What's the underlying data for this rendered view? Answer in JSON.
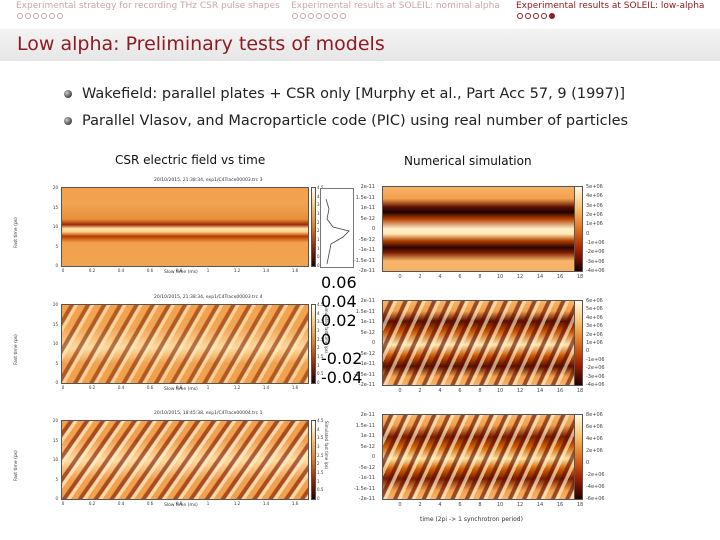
{
  "nav": {
    "sections": [
      {
        "label": "Experimental strategy for recording THz CSR pulse shapes",
        "dots": 6,
        "filled": 0,
        "active": false
      },
      {
        "label": "Experimental results at SOLEIL: nominal alpha",
        "dots": 7,
        "filled": 0,
        "active": false
      },
      {
        "label": "Experimental results at SOLEIL: low-alpha",
        "dots": 5,
        "filled": 1,
        "active": true
      }
    ]
  },
  "slide": {
    "title": "Low alpha: Preliminary tests of models",
    "bullets": [
      "Wakefield: parallel plates + CSR only [Murphy et al., Part Acc 57, 9 (1997)]",
      "Parallel Vlasov, and Macroparticle code (PIC) using real number of particles"
    ]
  },
  "left_column": {
    "heading": "CSR electric field vs time",
    "x_label": "Slow time (ms)",
    "y_label": "Fast time (ps)",
    "cbar_label": "Simulated fast time (ps)",
    "x_ticks": [
      "0",
      "0.2",
      "0.4",
      "0.6",
      "0.8",
      "1",
      "1.2",
      "1.4",
      "1.6"
    ],
    "y_ticks": [
      "20",
      "15",
      "10",
      "5",
      "0"
    ],
    "cbar_ticks": [
      "4.5",
      "4",
      "3.5",
      "3",
      "2.5",
      "2",
      "1.5",
      "1",
      "0.5",
      "0"
    ],
    "plots": [
      {
        "caption": "20/10/2015, 21:38:34, exp1/C4Trace00003.trc 3"
      },
      {
        "caption": "20/10/2015, 21:38:34, exp1/C4Trace00003.trc 4"
      },
      {
        "caption": "20/10/2015, 18:45:38, exp1/C4Trace00004.trc 1"
      }
    ],
    "inset": {
      "ticks": [
        "0.06",
        "0.04",
        "0.02",
        "0",
        "-0.02",
        "-0.04"
      ],
      "label": "Electric field (V)"
    }
  },
  "right_column": {
    "heading": "Numerical simulation",
    "x_label": "time (2pi -> 1 synchrotron period)",
    "x_ticks": [
      "0",
      "2",
      "4",
      "6",
      "8",
      "10",
      "12",
      "14",
      "16",
      "18"
    ],
    "plots": [
      {
        "y_ticks": [
          "2e-11",
          "1.5e-11",
          "1e-11",
          "5e-12",
          "0",
          "-5e-12",
          "-1e-11",
          "-1.5e-11",
          "-2e-11"
        ],
        "cbar_ticks": [
          "5e+06",
          "4e+06",
          "3e+06",
          "2e+06",
          "1e+06",
          "0",
          "-1e+06",
          "-2e+06",
          "-3e+06",
          "-4e+06"
        ]
      },
      {
        "y_ticks": [
          "2e-11",
          "1.5e-11",
          "1e-11",
          "5e-12",
          "0",
          "-5e-12",
          "-1e-11",
          "-1.5e-11",
          "-2e-11"
        ],
        "cbar_ticks": [
          "6e+06",
          "5e+06",
          "4e+06",
          "3e+06",
          "2e+06",
          "1e+06",
          "0",
          "-1e+06",
          "-2e+06",
          "-3e+06",
          "-4e+06"
        ]
      },
      {
        "y_ticks": [
          "2e-11",
          "1.5e-11",
          "1e-11",
          "5e-12",
          "0",
          "-5e-12",
          "-1e-11",
          "-1.5e-11",
          "-2e-11"
        ],
        "cbar_ticks": [
          "8e+06",
          "6e+06",
          "4e+06",
          "2e+06",
          "0",
          "-2e+06",
          "-4e+06",
          "-6e+06"
        ]
      }
    ]
  },
  "colors": {
    "accent": "#8e1b22",
    "nav_inactive": "#c9a6a8",
    "title_bar": "#ececec"
  }
}
